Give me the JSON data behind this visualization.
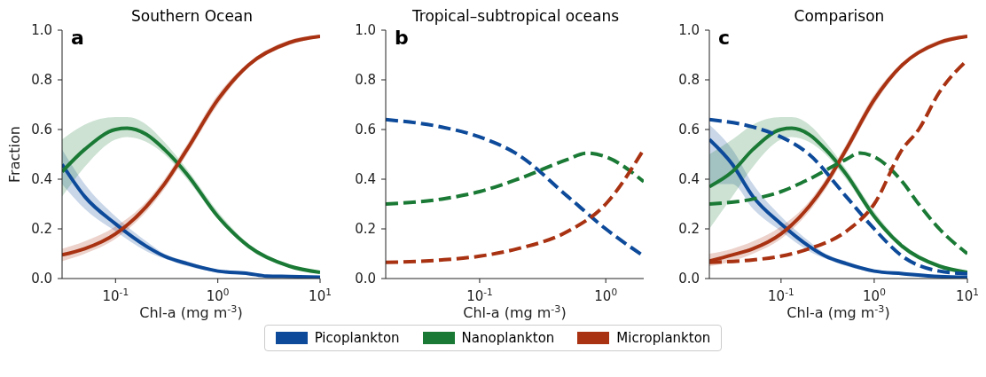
{
  "chart_data": [
    {
      "type": "line",
      "title": "Southern Ocean",
      "xlabel": "Chl-a (mg m$^{-3}$)",
      "ylabel": "Fraction",
      "annotations": [
        "a"
      ],
      "log": "x",
      "legend": "bottom",
      "xlim": [
        0.03,
        10
      ],
      "xticks": [
        {
          "value": 0.1,
          "label": "10$^{-1}$"
        },
        {
          "value": 1,
          "label": "10$^{0}$"
        },
        {
          "value": 10,
          "label": "10$^{1}$"
        }
      ],
      "ylim": [
        0,
        1
      ],
      "yticks": [
        {
          "value": 0,
          "label": "0.0"
        },
        {
          "value": 0.2,
          "label": "0.2"
        },
        {
          "value": 0.4,
          "label": "0.4"
        },
        {
          "value": 0.6,
          "label": "0.6"
        },
        {
          "value": 0.8,
          "label": "0.8"
        },
        {
          "value": 1,
          "label": "1.0"
        }
      ],
      "series": [
        {
          "name": "Picoplankton",
          "color": "#0d4a9a",
          "line_style": "solid",
          "x": [
            0.03,
            0.05,
            0.1,
            0.2,
            0.3,
            0.5,
            1,
            2,
            3,
            5,
            10
          ],
          "values": [
            0.46,
            0.33,
            0.22,
            0.13,
            0.09,
            0.06,
            0.03,
            0.02,
            0.01,
            0.008,
            0.005
          ],
          "lower": [
            0.38,
            0.28,
            0.19,
            0.11,
            0.08,
            0.05,
            0.025,
            0.015,
            0.008,
            0.006,
            0.004
          ],
          "upper": [
            0.52,
            0.38,
            0.25,
            0.15,
            0.1,
            0.07,
            0.035,
            0.025,
            0.012,
            0.01,
            0.006
          ]
        },
        {
          "name": "Nanoplankton",
          "color": "#1a7a35",
          "line_style": "solid",
          "x": [
            0.03,
            0.05,
            0.1,
            0.13,
            0.2,
            0.3,
            0.5,
            1,
            2,
            5,
            10
          ],
          "values": [
            0.43,
            0.52,
            0.6,
            0.605,
            0.58,
            0.52,
            0.42,
            0.25,
            0.13,
            0.05,
            0.025
          ],
          "lower": [
            0.33,
            0.45,
            0.56,
            0.57,
            0.55,
            0.5,
            0.4,
            0.24,
            0.12,
            0.045,
            0.02
          ],
          "upper": [
            0.56,
            0.62,
            0.65,
            0.65,
            0.62,
            0.55,
            0.44,
            0.27,
            0.14,
            0.055,
            0.03
          ]
        },
        {
          "name": "Microplankton",
          "color": "#a83212",
          "line_style": "solid",
          "x": [
            0.03,
            0.05,
            0.1,
            0.2,
            0.3,
            0.5,
            1,
            2,
            5,
            10
          ],
          "values": [
            0.095,
            0.12,
            0.18,
            0.29,
            0.38,
            0.52,
            0.72,
            0.86,
            0.95,
            0.975
          ],
          "lower": [
            0.07,
            0.1,
            0.16,
            0.27,
            0.36,
            0.5,
            0.7,
            0.85,
            0.94,
            0.97
          ],
          "upper": [
            0.12,
            0.15,
            0.21,
            0.31,
            0.4,
            0.54,
            0.74,
            0.87,
            0.96,
            0.98
          ]
        }
      ]
    },
    {
      "type": "line",
      "title": "Tropical–subtropical oceans",
      "xlabel": "Chl-a (mg m$^{-3}$)",
      "annotations": [
        "b"
      ],
      "log": "x",
      "xlim": [
        0.018,
        2
      ],
      "xticks": [
        {
          "value": 0.1,
          "label": "10$^{-1}$"
        },
        {
          "value": 1,
          "label": "10$^{0}$"
        }
      ],
      "ylim": [
        0,
        1
      ],
      "yticks": [
        {
          "value": 0,
          "label": "0.0"
        },
        {
          "value": 0.2,
          "label": "0.2"
        },
        {
          "value": 0.4,
          "label": "0.4"
        },
        {
          "value": 0.6,
          "label": "0.6"
        },
        {
          "value": 0.8,
          "label": "0.8"
        },
        {
          "value": 1,
          "label": "1.0"
        }
      ],
      "series": [
        {
          "color": "#0d4a9a",
          "line_style": "dashed",
          "x": [
            0.018,
            0.05,
            0.1,
            0.2,
            0.5,
            1,
            2
          ],
          "values": [
            0.64,
            0.61,
            0.57,
            0.5,
            0.33,
            0.2,
            0.09
          ]
        },
        {
          "color": "#1a7a35",
          "line_style": "dashed",
          "x": [
            0.018,
            0.05,
            0.1,
            0.2,
            0.5,
            0.7,
            1,
            2
          ],
          "values": [
            0.3,
            0.32,
            0.35,
            0.4,
            0.48,
            0.505,
            0.49,
            0.39
          ]
        },
        {
          "color": "#a83212",
          "line_style": "dashed",
          "x": [
            0.018,
            0.05,
            0.1,
            0.2,
            0.5,
            1,
            2
          ],
          "values": [
            0.065,
            0.075,
            0.09,
            0.12,
            0.19,
            0.3,
            0.52
          ]
        }
      ]
    },
    {
      "type": "line",
      "title": "Comparison",
      "xlabel": "Chl-a (mg m$^{-3}$)",
      "annotations": [
        "c"
      ],
      "log": "x",
      "xlim": [
        0.017,
        10
      ],
      "xticks": [
        {
          "value": 0.1,
          "label": "10$^{-1}$"
        },
        {
          "value": 1,
          "label": "10$^{0}$"
        },
        {
          "value": 10,
          "label": "10$^{1}$"
        }
      ],
      "ylim": [
        0,
        1
      ],
      "yticks": [
        {
          "value": 0,
          "label": "0.0"
        },
        {
          "value": 0.2,
          "label": "0.2"
        },
        {
          "value": 0.4,
          "label": "0.4"
        },
        {
          "value": 0.6,
          "label": "0.6"
        },
        {
          "value": 0.8,
          "label": "0.8"
        },
        {
          "value": 1,
          "label": "1.0"
        }
      ],
      "series": [
        {
          "color": "#0d4a9a",
          "line_style": "solid",
          "x": [
            0.017,
            0.03,
            0.05,
            0.1,
            0.2,
            0.3,
            0.5,
            1,
            2,
            5,
            10
          ],
          "values": [
            0.56,
            0.46,
            0.33,
            0.22,
            0.13,
            0.09,
            0.06,
            0.03,
            0.02,
            0.008,
            0.005
          ],
          "lower": [
            0.38,
            0.38,
            0.28,
            0.19,
            0.11,
            0.08,
            0.05,
            0.025,
            0.015,
            0.006,
            0.004
          ],
          "upper": [
            0.62,
            0.52,
            0.38,
            0.25,
            0.15,
            0.1,
            0.07,
            0.035,
            0.025,
            0.01,
            0.006
          ]
        },
        {
          "color": "#1a7a35",
          "line_style": "solid",
          "x": [
            0.017,
            0.03,
            0.05,
            0.1,
            0.13,
            0.2,
            0.3,
            0.5,
            1,
            2,
            5,
            10
          ],
          "values": [
            0.37,
            0.43,
            0.52,
            0.6,
            0.605,
            0.58,
            0.52,
            0.42,
            0.25,
            0.13,
            0.05,
            0.025
          ],
          "lower": [
            0.2,
            0.33,
            0.45,
            0.56,
            0.57,
            0.55,
            0.5,
            0.4,
            0.24,
            0.12,
            0.045,
            0.02
          ],
          "upper": [
            0.5,
            0.56,
            0.62,
            0.65,
            0.65,
            0.62,
            0.55,
            0.44,
            0.27,
            0.14,
            0.055,
            0.03
          ]
        },
        {
          "color": "#a83212",
          "line_style": "solid",
          "x": [
            0.017,
            0.03,
            0.05,
            0.1,
            0.2,
            0.3,
            0.5,
            1,
            2,
            5,
            10
          ],
          "values": [
            0.07,
            0.095,
            0.12,
            0.18,
            0.29,
            0.38,
            0.52,
            0.72,
            0.86,
            0.95,
            0.975
          ],
          "lower": [
            0.05,
            0.07,
            0.1,
            0.16,
            0.27,
            0.36,
            0.5,
            0.7,
            0.85,
            0.94,
            0.97
          ],
          "upper": [
            0.1,
            0.12,
            0.15,
            0.21,
            0.31,
            0.4,
            0.54,
            0.74,
            0.87,
            0.96,
            0.98
          ]
        },
        {
          "color": "#0d4a9a",
          "line_style": "dashed",
          "x": [
            0.017,
            0.05,
            0.1,
            0.2,
            0.5,
            1,
            2,
            5,
            10
          ],
          "values": [
            0.64,
            0.61,
            0.57,
            0.5,
            0.33,
            0.2,
            0.09,
            0.03,
            0.02
          ]
        },
        {
          "color": "#1a7a35",
          "line_style": "dashed",
          "x": [
            0.017,
            0.05,
            0.1,
            0.2,
            0.5,
            0.7,
            1,
            2,
            3,
            5,
            10
          ],
          "values": [
            0.3,
            0.32,
            0.35,
            0.4,
            0.48,
            0.505,
            0.49,
            0.39,
            0.3,
            0.2,
            0.1
          ]
        },
        {
          "color": "#a83212",
          "line_style": "dashed",
          "x": [
            0.017,
            0.05,
            0.1,
            0.2,
            0.5,
            1,
            2,
            3,
            5,
            10
          ],
          "values": [
            0.065,
            0.075,
            0.09,
            0.12,
            0.19,
            0.3,
            0.52,
            0.6,
            0.75,
            0.88
          ]
        }
      ]
    }
  ]
}
